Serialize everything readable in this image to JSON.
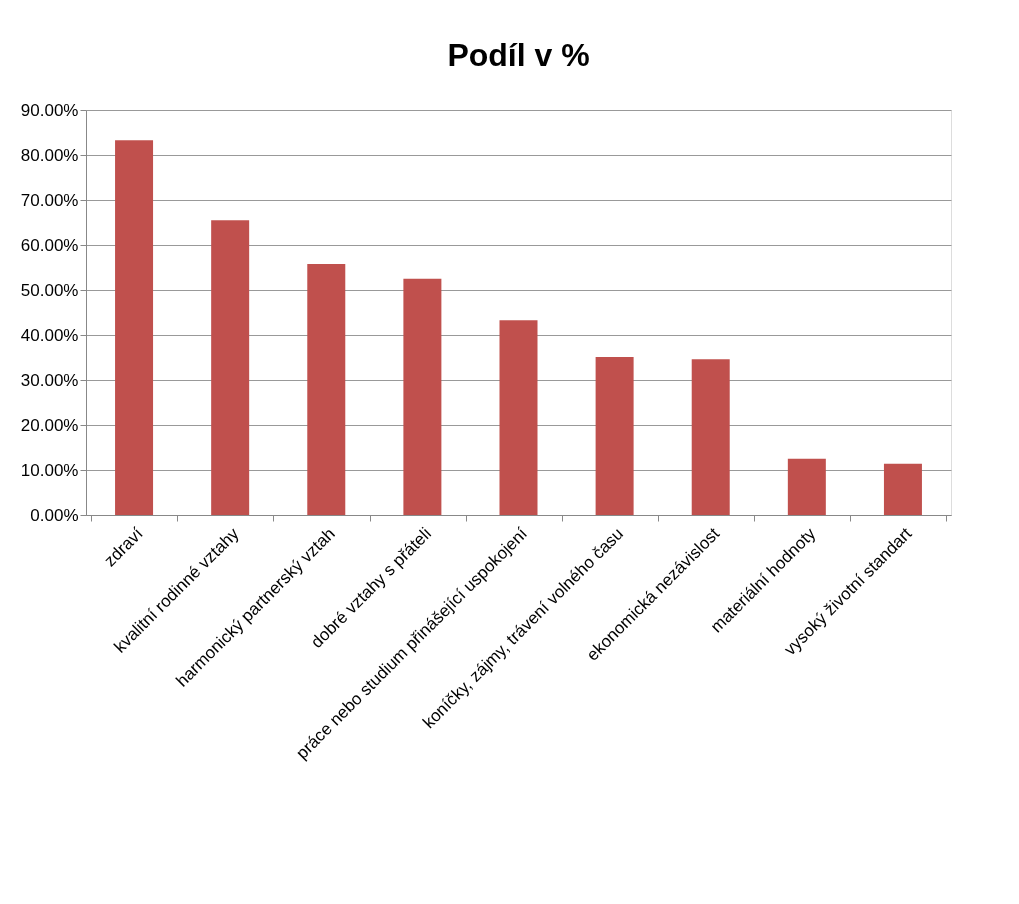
{
  "chart_data": {
    "type": "bar",
    "title": "Podíl v %",
    "categories": [
      "zdraví",
      "kvalitní rodinné vztahy",
      "harmonický partnerský vztah",
      "dobré vztahy s přáteli",
      "práce nebo studium přinášející uspokojení",
      "koníčky, zájmy, trávení volného času",
      "ekonomická nezávislost",
      "materiální hodnoty",
      "vysoký životní standart"
    ],
    "values": [
      83.3,
      65.5,
      55.8,
      52.5,
      43.3,
      35.1,
      34.6,
      12.5,
      11.4
    ],
    "color": "#c0504d",
    "ylim": [
      0,
      90
    ],
    "yticks": [
      {
        "value": 0,
        "label": "0.00%"
      },
      {
        "value": 10,
        "label": "10.00%"
      },
      {
        "value": 20,
        "label": "20.00%"
      },
      {
        "value": 30,
        "label": "30.00%"
      },
      {
        "value": 40,
        "label": "40.00%"
      },
      {
        "value": 50,
        "label": "50.00%"
      },
      {
        "value": 60,
        "label": "60.00%"
      },
      {
        "value": 70,
        "label": "70.00%"
      },
      {
        "value": 80,
        "label": "80.00%"
      },
      {
        "value": 90,
        "label": "90.00%"
      }
    ],
    "grid": "y"
  }
}
